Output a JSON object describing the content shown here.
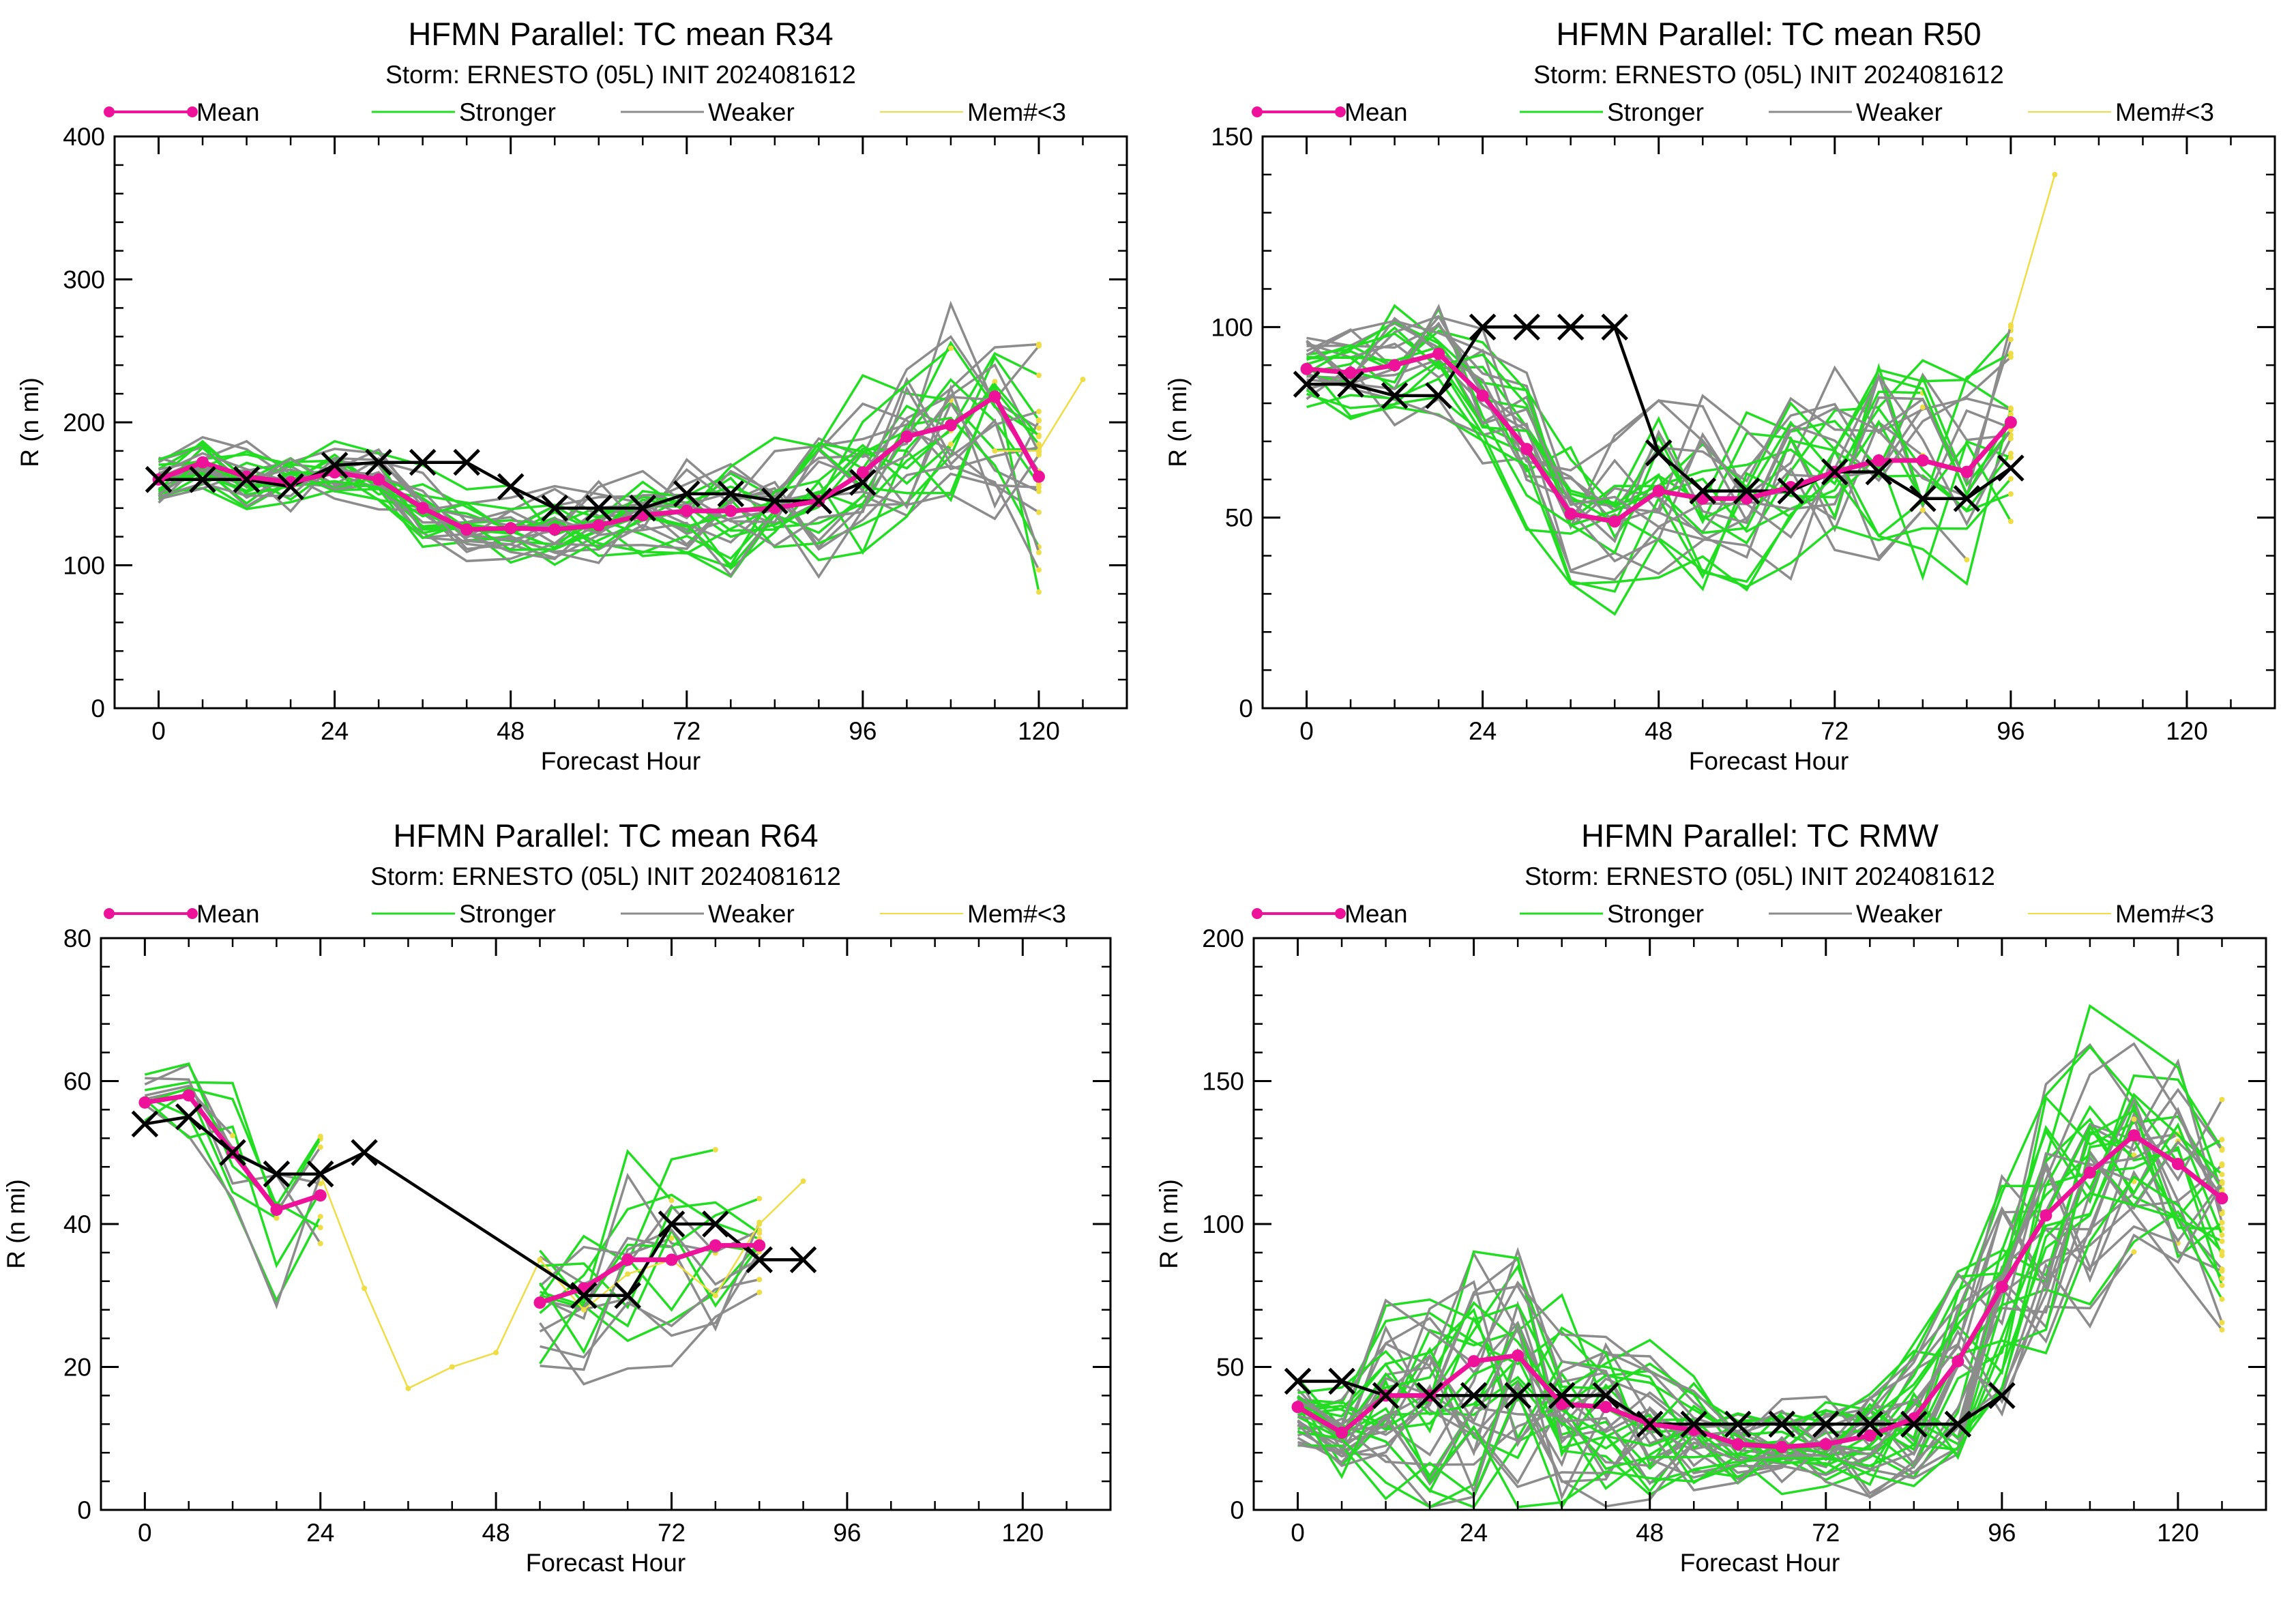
{
  "colors": {
    "mean": "#ee1199",
    "stronger": "#22dd22",
    "weaker": "#8c8c8c",
    "few_members": "#eedd44",
    "best_track": "#000000"
  },
  "chart_data": [
    {
      "type": "line",
      "title": "HFMN Parallel: TC mean R34",
      "subtitle": "Storm: ERNESTO (05L) INIT 2024081612",
      "xlabel": "Forecast Hour",
      "ylabel": "R (n mi)",
      "xlim": [
        -6,
        132
      ],
      "ylim": [
        0,
        400
      ],
      "xticks": [
        "0",
        "24",
        "48",
        "72",
        "96",
        "120"
      ],
      "yticks": [
        "0",
        "100",
        "200",
        "300",
        "400"
      ],
      "legend": [
        "Mean",
        "Stronger",
        "Weaker",
        "Mem#<3"
      ],
      "legend_position": "top",
      "mean": {
        "x": [
          0,
          6,
          12,
          18,
          24,
          30,
          36,
          42,
          48,
          54,
          60,
          66,
          72,
          78,
          84,
          90,
          96,
          102,
          108,
          114,
          120
        ],
        "y": [
          160,
          172,
          162,
          158,
          165,
          160,
          140,
          125,
          126,
          125,
          128,
          135,
          138,
          138,
          140,
          145,
          165,
          190,
          198,
          218,
          162
        ]
      },
      "best_track": {
        "x": [
          0,
          6,
          12,
          18,
          24,
          30,
          36,
          42,
          48,
          54,
          60,
          66,
          72,
          78,
          84,
          90,
          96
        ],
        "y": [
          160,
          160,
          160,
          155,
          170,
          172,
          172,
          172,
          155,
          140,
          140,
          140,
          150,
          150,
          145,
          145,
          158
        ]
      },
      "few_members": {
        "x": [
          114,
          120,
          126
        ],
        "y": [
          180,
          180,
          230
        ]
      },
      "ensemble": {
        "x_end": 120,
        "base": [
          160,
          172,
          162,
          158,
          165,
          160,
          140,
          125,
          126,
          125,
          128,
          135,
          138,
          138,
          140,
          145,
          165,
          190,
          198,
          218,
          162
        ],
        "spread": [
          18,
          20,
          22,
          22,
          22,
          22,
          25,
          25,
          25,
          28,
          30,
          32,
          35,
          40,
          45,
          50,
          60,
          70,
          80,
          90,
          90
        ],
        "stronger_count": 14,
        "weaker_count": 14
      }
    },
    {
      "type": "line",
      "title": "HFMN Parallel: TC mean R50",
      "subtitle": "Storm: ERNESTO (05L) INIT 2024081612",
      "xlabel": "Forecast Hour",
      "ylabel": "R (n mi)",
      "xlim": [
        -6,
        132
      ],
      "ylim": [
        0,
        150
      ],
      "xticks": [
        "0",
        "24",
        "48",
        "72",
        "96",
        "120"
      ],
      "yticks": [
        "0",
        "50",
        "100",
        "150"
      ],
      "legend": [
        "Mean",
        "Stronger",
        "Weaker",
        "Mem#<3"
      ],
      "legend_position": "top",
      "mean": {
        "x": [
          0,
          6,
          12,
          18,
          24,
          30,
          36,
          42,
          48,
          54,
          60,
          66,
          72,
          78,
          84,
          90,
          96
        ],
        "y": [
          89,
          88,
          90,
          93,
          82,
          68,
          51,
          49,
          57,
          55,
          55,
          58,
          62,
          65,
          65,
          62,
          75
        ]
      },
      "best_track": {
        "x": [
          0,
          6,
          12,
          18,
          24,
          30,
          36,
          42,
          48,
          54,
          60,
          66,
          72,
          78,
          84,
          90,
          96
        ],
        "y": [
          85,
          85,
          82,
          82,
          100,
          100,
          100,
          100,
          67,
          57,
          57,
          57,
          62,
          62,
          55,
          55,
          63
        ]
      },
      "few_members": {
        "x": [
          96,
          102
        ],
        "y": [
          100,
          140
        ]
      },
      "ensemble": {
        "x_end": 96,
        "base": [
          89,
          88,
          90,
          93,
          82,
          68,
          51,
          49,
          57,
          55,
          55,
          58,
          62,
          65,
          65,
          62,
          75
        ],
        "spread": [
          8,
          12,
          14,
          16,
          18,
          20,
          18,
          20,
          22,
          25,
          25,
          25,
          25,
          28,
          30,
          30,
          30
        ],
        "stronger_count": 13,
        "weaker_count": 12
      }
    },
    {
      "type": "line",
      "title": "HFMN Parallel: TC mean R64",
      "subtitle": "Storm: ERNESTO (05L) INIT 2024081612",
      "xlabel": "Forecast Hour",
      "ylabel": "R (n mi)",
      "xlim": [
        -6,
        132
      ],
      "ylim": [
        0,
        80
      ],
      "xticks": [
        "0",
        "24",
        "48",
        "72",
        "96",
        "120"
      ],
      "yticks": [
        "0",
        "20",
        "40",
        "60",
        "80"
      ],
      "legend": [
        "Mean",
        "Stronger",
        "Weaker",
        "Mem#<3"
      ],
      "legend_position": "top",
      "mean": {
        "x": [
          0,
          6,
          12,
          18,
          24
        ],
        "y": [
          57,
          58,
          50,
          42,
          44
        ]
      },
      "mean_late": {
        "x": [
          54,
          60,
          66,
          72,
          78,
          84
        ],
        "y": [
          29,
          31,
          35,
          35,
          37,
          37
        ]
      },
      "best_track": {
        "x": [
          0,
          6,
          12,
          18,
          24,
          30,
          60,
          66,
          72,
          78,
          84,
          90
        ],
        "y": [
          54,
          55,
          50,
          47,
          47,
          50,
          30,
          30,
          40,
          40,
          35,
          35
        ]
      },
      "few_members": {
        "x": [
          24,
          30,
          36,
          42,
          48,
          54,
          60,
          66,
          72,
          78,
          84,
          90
        ],
        "y": [
          47,
          31,
          17,
          20,
          22,
          35,
          28,
          33,
          35,
          30,
          40,
          46
        ]
      },
      "ensemble_early": {
        "x_end": 24,
        "base": [
          57,
          58,
          50,
          42,
          44
        ],
        "spread": [
          6,
          8,
          10,
          12,
          14
        ],
        "stronger_count": 6,
        "weaker_count": 5
      },
      "ensemble_late": {
        "x_start": 54,
        "x_end": 84,
        "base": [
          29,
          31,
          35,
          35,
          37,
          37
        ],
        "spread": [
          12,
          14,
          15,
          15,
          14,
          12
        ],
        "stronger_count": 8,
        "weaker_count": 8
      }
    },
    {
      "type": "line",
      "title": "HFMN Parallel: TC RMW",
      "subtitle": "Storm: ERNESTO (05L) INIT 2024081612",
      "xlabel": "Forecast Hour",
      "ylabel": "R (n mi)",
      "xlim": [
        -6,
        132
      ],
      "ylim": [
        0,
        200
      ],
      "xticks": [
        "0",
        "24",
        "48",
        "72",
        "96",
        "120"
      ],
      "yticks": [
        "0",
        "50",
        "100",
        "150",
        "200"
      ],
      "legend": [
        "Mean",
        "Stronger",
        "Weaker",
        "Mem#<3"
      ],
      "legend_position": "top",
      "mean": {
        "x": [
          0,
          6,
          12,
          18,
          24,
          30,
          36,
          42,
          48,
          54,
          60,
          66,
          72,
          78,
          84,
          90,
          96,
          102,
          108,
          114,
          120,
          126
        ],
        "y": [
          36,
          27,
          40,
          40,
          52,
          54,
          37,
          36,
          30,
          28,
          23,
          22,
          23,
          26,
          32,
          52,
          78,
          103,
          118,
          131,
          121,
          109
        ]
      },
      "best_track": {
        "x": [
          0,
          6,
          12,
          18,
          24,
          30,
          36,
          42,
          48,
          54,
          60,
          66,
          72,
          78,
          84,
          90,
          96
        ],
        "y": [
          45,
          45,
          40,
          40,
          40,
          40,
          40,
          40,
          30,
          30,
          30,
          30,
          30,
          30,
          30,
          30,
          40
        ]
      },
      "few_members": {
        "x": [],
        "y": []
      },
      "ensemble": {
        "x_end": 126,
        "base": [
          36,
          27,
          40,
          40,
          52,
          54,
          37,
          36,
          30,
          28,
          23,
          22,
          23,
          26,
          32,
          52,
          78,
          103,
          118,
          131,
          121,
          109
        ],
        "spread": [
          12,
          15,
          30,
          40,
          50,
          55,
          40,
          30,
          25,
          20,
          15,
          15,
          15,
          20,
          25,
          40,
          50,
          50,
          50,
          40,
          40,
          45
        ],
        "stronger_count": 18,
        "weaker_count": 18
      }
    }
  ]
}
